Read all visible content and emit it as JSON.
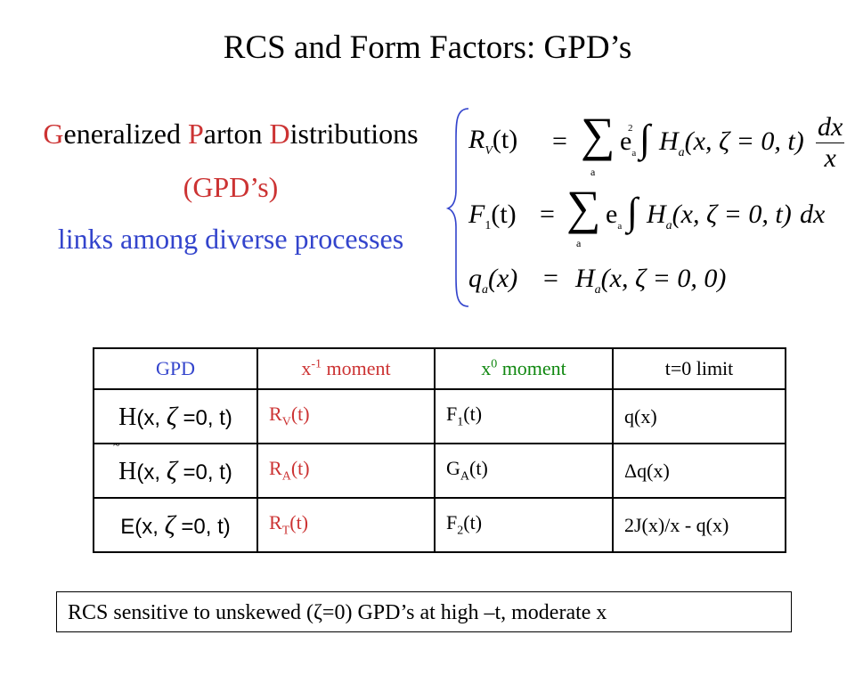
{
  "title": "RCS and Form Factors:  GPD’s",
  "gpd_heading": {
    "g": "G",
    "g_rest": "eneralized ",
    "p": "P",
    "p_rest": "arton ",
    "d": "D",
    "d_rest": "istributions"
  },
  "gpd_abbr": "(GPD’s)",
  "links_text": "links among diverse processes",
  "equations": {
    "rv_lhs": "R",
    "rv_sub": "V",
    "rv_arg": "(t)",
    "f1_lhs": "F",
    "f1_sub": "1",
    "f1_arg": "(t)",
    "qa_lhs": "q",
    "qa_sub": "a",
    "qa_arg": "(x)",
    "equals": "=",
    "sum": "∑",
    "sum_index": "a",
    "ea2": "e",
    "ea2_sub": "a",
    "ea2_sup": "2",
    "ea": "e",
    "ea_sub": "a",
    "integral": "∫",
    "h": "H",
    "h_sub": "a",
    "h_args_t": "(x, ζ = 0, t)",
    "h_args_0": "(x, ζ = 0, 0)",
    "dx": "dx",
    "x": "x"
  },
  "table": {
    "headers": {
      "gpd": "GPD",
      "xm1_base": "x",
      "xm1_exp": "-1",
      "xm1_rest": " moment",
      "x0_base": "x",
      "x0_exp": "0",
      "x0_rest": " moment",
      "t0": "t=0 limit"
    },
    "rows": [
      {
        "gpd_letter": "H",
        "gpd_args_a": "(x, ",
        "gpd_zeta": "ζ",
        "gpd_args_b": " =0, t)",
        "m1_base": "R",
        "m1_sub": "V",
        "m1_arg": "(t)",
        "m0_base": "F",
        "m0_sub": "1",
        "m0_arg": "(t)",
        "t0": "q(x)"
      },
      {
        "gpd_letter": "H",
        "gpd_args_a": "(x, ",
        "gpd_zeta": "ζ",
        "gpd_args_b": " =0, t)",
        "tilde": "~",
        "m1_base": "R",
        "m1_sub": "A",
        "m1_arg": "(t)",
        "m0_base": "G",
        "m0_sub": "A",
        "m0_arg": "(t)",
        "t0": "Δq(x)"
      },
      {
        "gpd_letter": "E",
        "gpd_args_a": "(x, ",
        "gpd_zeta": "ζ",
        "gpd_args_b": " =0, t)",
        "m1_base": "R",
        "m1_sub": "T",
        "m1_arg": "(t)",
        "m0_base": "F",
        "m0_sub": "2",
        "m0_arg": "(t)",
        "t0": "2J(x)/x - q(x)"
      }
    ]
  },
  "footer": "RCS sensitive to unskewed (ζ=0) GPD’s at high –t, moderate x",
  "colors": {
    "red": "#cc3333",
    "blue": "#3344cc",
    "black": "#000000"
  }
}
